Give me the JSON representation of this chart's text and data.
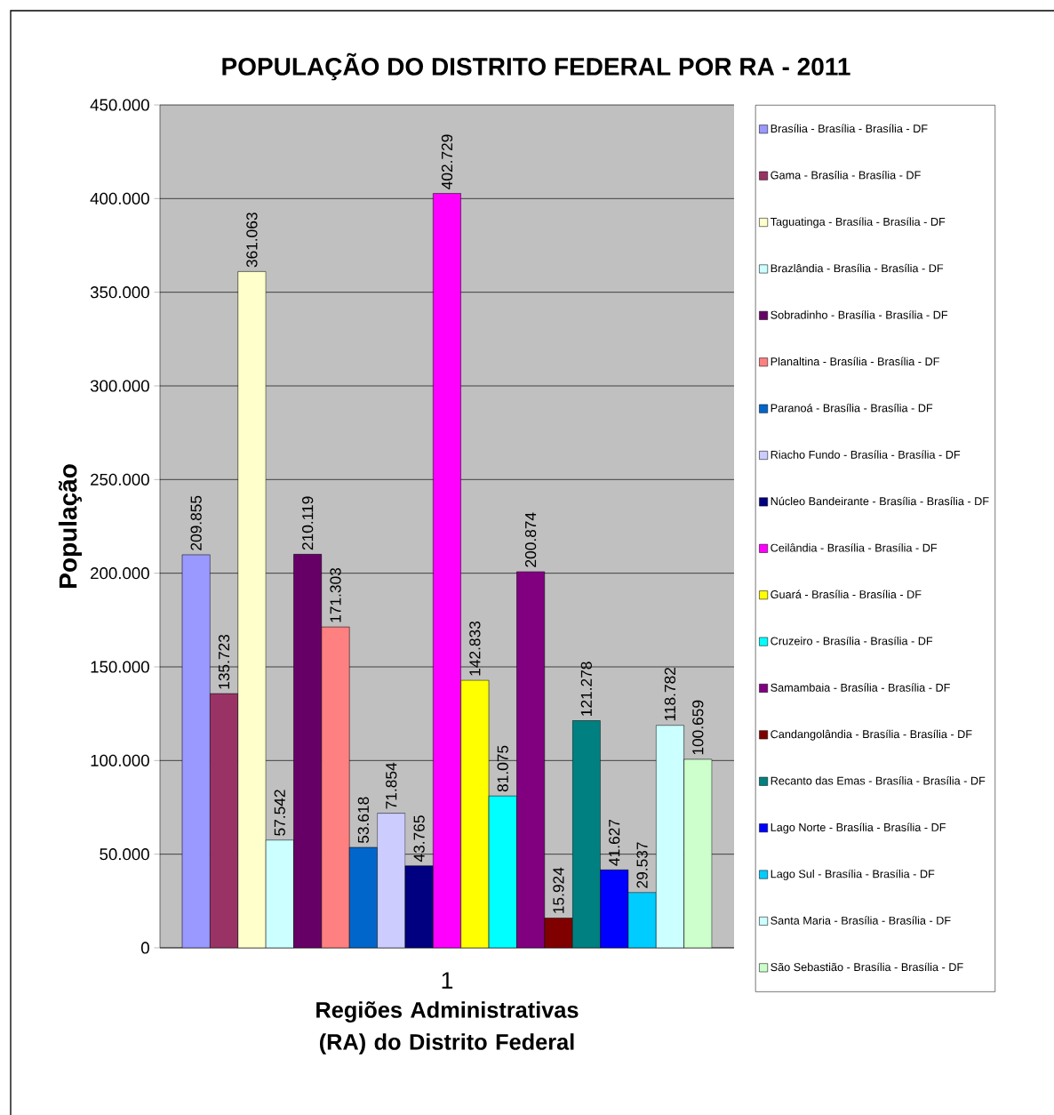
{
  "chart_data": {
    "type": "bar",
    "title": "POPULAÇÃO DO DISTRITO FEDERAL POR RA - 2011",
    "xlabel": "Regiões Administrativas (RA) do Distrito Federal",
    "ylabel": "População",
    "categories": [
      "1"
    ],
    "ylim": [
      0,
      450000
    ],
    "yticks": [
      0,
      {
        "value": 50000,
        "label": "50.000"
      },
      {
        "value": 100000,
        "label": "100.000"
      },
      {
        "value": 150000,
        "label": "150.000"
      },
      {
        "value": 200000,
        "label": "200.000"
      },
      {
        "value": 250000,
        "label": "250.000"
      },
      {
        "value": 300000,
        "label": "300.000"
      },
      {
        "value": 350000,
        "label": "350.000"
      },
      {
        "value": 400000,
        "label": "400.000"
      },
      {
        "value": 450000,
        "label": "450.000"
      }
    ],
    "grid": "y",
    "legend": "right",
    "series": [
      {
        "name": "Brasília - Brasília - Brasília - DF",
        "color": "#9999ff",
        "values": [
          209855
        ],
        "value_labels": [
          "209.855"
        ]
      },
      {
        "name": "Gama - Brasília - Brasília - DF",
        "color": "#993366",
        "values": [
          135723
        ],
        "value_labels": [
          "135.723"
        ]
      },
      {
        "name": "Taguatinga - Brasília - Brasília - DF",
        "color": "#ffffcc",
        "values": [
          361063
        ],
        "value_labels": [
          "361.063"
        ]
      },
      {
        "name": "Brazlândia - Brasília - Brasília - DF",
        "color": "#ccffff",
        "values": [
          57542
        ],
        "value_labels": [
          "57.542"
        ]
      },
      {
        "name": "Sobradinho - Brasília - Brasília - DF",
        "color": "#660066",
        "values": [
          210119
        ],
        "value_labels": [
          "210.119"
        ]
      },
      {
        "name": "Planaltina - Brasília - Brasília - DF",
        "color": "#ff8080",
        "values": [
          171303
        ],
        "value_labels": [
          "171.303"
        ]
      },
      {
        "name": "Paranoá - Brasília - Brasília - DF",
        "color": "#0066cc",
        "values": [
          53618
        ],
        "value_labels": [
          "53.618"
        ]
      },
      {
        "name": "Riacho Fundo - Brasília - Brasília - DF",
        "color": "#ccccff",
        "values": [
          71854
        ],
        "value_labels": [
          "71.854"
        ]
      },
      {
        "name": "Núcleo Bandeirante - Brasília - Brasília - DF",
        "color": "#000080",
        "values": [
          43765
        ],
        "value_labels": [
          "43.765"
        ]
      },
      {
        "name": "Ceilândia - Brasília - Brasília - DF",
        "color": "#ff00ff",
        "values": [
          402729
        ],
        "value_labels": [
          "402.729"
        ]
      },
      {
        "name": "Guará - Brasília - Brasília - DF",
        "color": "#ffff00",
        "values": [
          142833
        ],
        "value_labels": [
          "142.833"
        ]
      },
      {
        "name": "Cruzeiro - Brasília - Brasília - DF",
        "color": "#00ffff",
        "values": [
          81075
        ],
        "value_labels": [
          "81.075"
        ]
      },
      {
        "name": "Samambaia - Brasília - Brasília - DF",
        "color": "#800080",
        "values": [
          200874
        ],
        "value_labels": [
          "200.874"
        ]
      },
      {
        "name": "Candangolândia - Brasília - Brasília - DF",
        "color": "#800000",
        "values": [
          15924
        ],
        "value_labels": [
          "15.924"
        ]
      },
      {
        "name": "Recanto das Emas - Brasília - Brasília - DF",
        "color": "#008080",
        "values": [
          121278
        ],
        "value_labels": [
          "121.278"
        ]
      },
      {
        "name": "Lago Norte - Brasília - Brasília - DF",
        "color": "#0000ff",
        "values": [
          41627
        ],
        "value_labels": [
          "41.627"
        ]
      },
      {
        "name": "Lago Sul - Brasília - Brasília - DF",
        "color": "#00ccff",
        "values": [
          29537
        ],
        "value_labels": [
          "29.537"
        ]
      },
      {
        "name": "Santa Maria - Brasília - Brasília - DF",
        "color": "#ccffff",
        "values": [
          118782
        ],
        "value_labels": [
          "118.782"
        ]
      },
      {
        "name": "São Sebastião - Brasília - Brasília - DF",
        "color": "#ccffcc",
        "values": [
          100659
        ],
        "value_labels": [
          "100.659"
        ]
      }
    ]
  }
}
